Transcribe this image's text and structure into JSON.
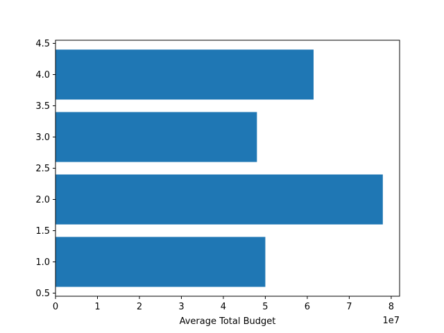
{
  "chart_data": {
    "type": "bar",
    "orientation": "horizontal",
    "categories": [
      1.0,
      2.0,
      3.0,
      4.0
    ],
    "values": [
      50000000,
      78000000,
      48000000,
      61500000
    ],
    "title": "",
    "xlabel": "Average Total Budget",
    "ylabel": "",
    "x_offset_label": "1e7",
    "xlim": [
      0,
      82000000
    ],
    "ylim": [
      0.45,
      4.55
    ],
    "x_ticks": [
      0,
      1,
      2,
      3,
      4,
      5,
      6,
      7,
      8
    ],
    "x_tick_scale": 10000000,
    "y_ticks": [
      "0.5",
      "1.0",
      "1.5",
      "2.0",
      "2.5",
      "3.0",
      "3.5",
      "4.0",
      "4.5"
    ],
    "y_tick_values": [
      0.5,
      1.0,
      1.5,
      2.0,
      2.5,
      3.0,
      3.5,
      4.0,
      4.5
    ],
    "bar_height": 0.8,
    "grid": false,
    "legend": "none",
    "bar_color": "#1f77b4"
  }
}
